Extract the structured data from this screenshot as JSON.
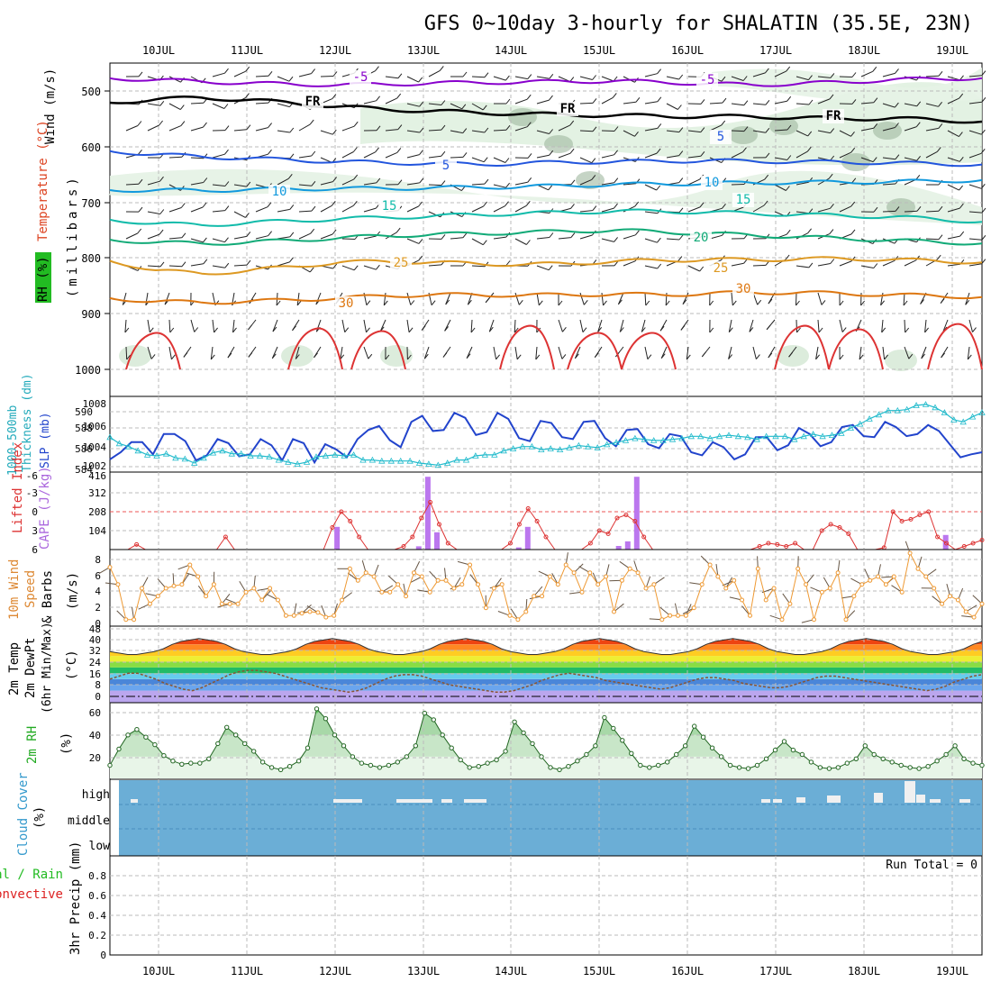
{
  "title": "GFS 0~10day 3-hourly for SHALATIN (35.5E, 23N)",
  "date_labels": [
    "10JUL",
    "11JUL",
    "12JUL",
    "13JUL",
    "14JUL",
    "15JUL",
    "16JUL",
    "17JUL",
    "18JUL",
    "19JUL"
  ],
  "chart_data": [
    {
      "id": "upper-air",
      "type": "contour",
      "ylabel": [
        "Wind (m/s)",
        "Temperature (°C)",
        "RH (%)",
        "(millibars)"
      ],
      "y_ticks": [
        "500",
        "600",
        "700",
        "800",
        "900",
        "1000"
      ],
      "isotherm_labels": [
        "-5",
        "FR",
        "5",
        "10",
        "15",
        "20",
        "25",
        "30"
      ],
      "isotherms": [
        {
          "label": "-5",
          "color": "#8800cc",
          "p": [
            477,
            480,
            483,
            486,
            488,
            489,
            488,
            486,
            485,
            484,
            483,
            482,
            484,
            487,
            489,
            487,
            484,
            480,
            478,
            477
          ]
        },
        {
          "label": "FR",
          "color": "#000000",
          "p": [
            521,
            515,
            512,
            516,
            522,
            528,
            533,
            536,
            539,
            541,
            543,
            544,
            545,
            546,
            546,
            548,
            550,
            549,
            552,
            555
          ]
        },
        {
          "label": "5",
          "color": "#2255dd",
          "p": [
            608,
            614,
            618,
            621,
            624,
            627,
            629,
            630,
            632,
            630,
            628,
            627,
            626,
            625,
            626,
            627,
            628,
            629,
            631,
            632
          ]
        },
        {
          "label": "10",
          "color": "#1199dd",
          "p": [
            678,
            678,
            679,
            677,
            676,
            675,
            675,
            674,
            673,
            672,
            670,
            668,
            667,
            666,
            665,
            664,
            664,
            663,
            662,
            660
          ]
        },
        {
          "label": "15",
          "color": "#11bbaa",
          "p": [
            731,
            738,
            741,
            737,
            733,
            730,
            727,
            725,
            722,
            720,
            718,
            716,
            716,
            718,
            720,
            722,
            724,
            726,
            730,
            735
          ]
        },
        {
          "label": "20",
          "color": "#11aa77",
          "p": [
            767,
            772,
            774,
            772,
            768,
            764,
            760,
            758,
            756,
            754,
            752,
            750,
            753,
            756,
            759,
            762,
            765,
            768,
            771,
            774
          ]
        },
        {
          "label": "25",
          "color": "#dd9922",
          "p": [
            805,
            822,
            828,
            823,
            815,
            808,
            806,
            808,
            810,
            812,
            810,
            806,
            804,
            803,
            803,
            802,
            801,
            803,
            805,
            808
          ]
        },
        {
          "label": "30",
          "color": "#dd7711",
          "p": [
            872,
            878,
            880,
            878,
            875,
            872,
            868,
            866,
            866,
            867,
            866,
            865,
            866,
            864,
            862,
            862,
            864,
            866,
            868,
            870
          ]
        }
      ]
    },
    {
      "id": "thickness-slp",
      "type": "line",
      "ylabel_left": [
        "1000-500mb",
        "Thickness (dm)"
      ],
      "ylabel_right": "SLP (mb)",
      "thickness_ticks": [
        "590",
        "588",
        "586",
        "584"
      ],
      "slp_ticks": [
        "1008",
        "1006",
        "1004",
        "1002"
      ],
      "series": [
        {
          "name": "SLP (mb)",
          "color": "#2244cc",
          "values": [
            1002.9,
            1003.6,
            1004.6,
            1004.6,
            1003.4,
            1005.4,
            1005.4,
            1004.7,
            1002.8,
            1003.3,
            1004.9,
            1004.5,
            1003.2,
            1003.4,
            1004.9,
            1004.3,
            1002.8,
            1004.9,
            1004.5,
            1002.6,
            1004.4,
            1003.9,
            1003.1,
            1004.9,
            1005.8,
            1006.2,
            1004.8,
            1004.1,
            1006.6,
            1007.2,
            1005.7,
            1005.8,
            1007.5,
            1007.0,
            1005.3,
            1005.6,
            1007.5,
            1006.9,
            1005.0,
            1004.7,
            1006.7,
            1006.5,
            1005.1,
            1004.9,
            1006.6,
            1006.7,
            1005.0,
            1004.2,
            1005.8,
            1005.9,
            1004.4,
            1004.0,
            1005.4,
            1005.2,
            1003.6,
            1003.3,
            1004.6,
            1004.1,
            1002.9,
            1003.4,
            1005.1,
            1005.1,
            1003.8,
            1004.3,
            1006.0,
            1005.4,
            1004.2,
            1004.6,
            1006.1,
            1006.3,
            1005.2,
            1005.1,
            1006.6,
            1006.1,
            1005.2,
            1005.4,
            1006.3,
            1005.7,
            1004.4,
            1003.1,
            1003.4,
            1003.6
          ]
        },
        {
          "name": "1000-500mb Thickness (dm)",
          "color": "#22bbcc",
          "values": [
            587.2,
            586.6,
            586.3,
            585.9,
            585.5,
            585.4,
            585.6,
            585.2,
            585.1,
            584.7,
            585.2,
            585.7,
            585.9,
            585.6,
            585.6,
            585.4,
            585.4,
            585.3,
            585.0,
            584.8,
            584.6,
            584.8,
            585.3,
            585.4,
            585.5,
            585.4,
            585.5,
            585.0,
            585.0,
            584.9,
            584.9,
            584.9,
            584.9,
            584.7,
            584.6,
            584.5,
            584.7,
            585.0,
            585.0,
            585.4,
            585.5,
            585.5,
            585.9,
            586.1,
            586.3,
            586.3,
            586.0,
            586.1,
            586.0,
            586.2,
            586.4,
            586.3,
            586.2,
            586.5,
            586.7,
            586.9,
            587.1,
            587.0,
            586.9,
            586.9,
            587.0,
            587.1,
            587.3,
            587.3,
            587.1,
            587.3,
            587.4,
            587.3,
            587.2,
            587.0,
            587.3,
            587.3,
            587.3,
            587.0,
            587.3,
            587.5,
            587.3,
            587.4,
            587.6,
            588.1,
            588.5,
            589.0,
            589.4,
            589.8,
            589.8,
            589.9,
            590.3,
            590.4,
            590.1,
            589.6,
            588.9,
            588.7,
            589.2,
            589.6
          ]
        }
      ]
    },
    {
      "id": "lifted-cape",
      "type": "bar+line",
      "ylabel_left": "Lifted Index",
      "ylabel_right": "CAPE (J/kg)",
      "li_ticks": [
        "-6",
        "-3",
        "0",
        "3",
        "6"
      ],
      "cape_ticks": [
        "416",
        "312",
        "208",
        "104"
      ],
      "cape": [
        0,
        0,
        0,
        0,
        0,
        0,
        0,
        0,
        0,
        0,
        0,
        0,
        0,
        0,
        0,
        0,
        0,
        0,
        0,
        0,
        0,
        0,
        0,
        0,
        0,
        125,
        0,
        0,
        0,
        0,
        0,
        0,
        0,
        0,
        18,
        400,
        95,
        0,
        0,
        0,
        0,
        0,
        0,
        0,
        0,
        12,
        125,
        0,
        0,
        0,
        0,
        0,
        0,
        0,
        0,
        0,
        20,
        45,
        400,
        0,
        0,
        0,
        0,
        0,
        0,
        0,
        0,
        0,
        0,
        0,
        0,
        0,
        0,
        0,
        0,
        0,
        0,
        0,
        0,
        0,
        0,
        0,
        0,
        0,
        0,
        0,
        0,
        0,
        0,
        0,
        0,
        0,
        80,
        0,
        0,
        0,
        0
      ],
      "lifted_index": [
        6,
        6,
        6,
        5.2,
        6,
        6,
        6,
        6,
        6,
        6,
        6,
        6,
        6,
        4,
        6,
        6,
        6,
        6,
        6,
        6,
        6,
        6,
        6,
        6,
        6,
        2.5,
        0,
        1.5,
        4,
        6,
        6,
        6,
        6,
        5.5,
        4,
        1,
        -1.5,
        2,
        5,
        6,
        6,
        6,
        6,
        6,
        6,
        5,
        2,
        -0.5,
        1.5,
        4,
        6,
        6,
        6,
        6,
        5,
        3,
        3.5,
        1,
        0.5,
        1.5,
        4,
        6,
        6,
        6,
        6,
        6,
        6,
        6,
        6,
        6,
        6,
        6,
        6,
        5.5,
        5,
        5.2,
        5.5,
        5,
        6,
        6,
        3,
        2,
        2.5,
        3.5,
        6,
        6,
        6,
        5.7,
        0,
        1.5,
        1.2,
        0.5,
        0,
        4,
        5,
        6,
        5.5,
        5,
        4.5
      ]
    },
    {
      "id": "wind-10m",
      "type": "line",
      "ylabel": [
        "10m Wind",
        "Speed",
        "& Barbs",
        "(m/s)"
      ],
      "y_ticks": [
        "8",
        "6",
        "4",
        "2",
        "0"
      ],
      "speed": [
        7.2,
        5.0,
        0.5,
        0.5,
        4.5,
        2.5,
        3.5,
        4.5,
        4.8,
        5.0,
        7.5,
        6.0,
        3.5,
        5.0,
        2.5,
        2.5,
        2.5,
        4.0,
        4.5,
        3.0,
        4.5,
        3.0,
        1.0,
        1.0,
        1.3,
        1.5,
        1.4,
        0.8,
        1.0,
        3.0,
        7.0,
        5.5,
        6.5,
        6.0,
        4.0,
        4.0,
        5.0,
        3.5,
        6.5,
        6.0,
        4.0,
        5.5,
        5.5,
        4.5,
        5.0,
        7.5,
        5.0,
        2.0,
        4.5,
        5.0,
        1.0,
        0.5,
        1.5,
        3.5,
        3.5,
        6.0,
        5.0,
        7.5,
        6.5,
        4.0,
        6.5,
        5.0,
        6.0,
        1.5,
        5.5,
        7.0,
        6.5,
        4.5,
        5.0,
        0.5,
        1.0,
        1.0,
        1.0,
        2.0,
        5.0,
        7.5,
        6.0,
        4.5,
        5.5,
        3.0,
        1.0,
        7.0,
        3.0,
        4.5,
        0.5,
        2.5,
        7.0,
        5.0,
        0.5,
        4.0,
        4.5,
        6.5,
        0.5,
        3.5,
        5.0,
        5.5,
        6.0,
        5.0,
        6.0,
        4.0,
        9.0,
        7.0,
        6.0,
        4.5,
        2.5,
        3.5,
        3.0,
        1.5,
        0.8,
        2.5
      ]
    },
    {
      "id": "temp-2m",
      "type": "area",
      "ylabel": [
        "2m Temp",
        "2m DewPt",
        "(6hr Min/Max)",
        "(°C)"
      ],
      "y_ticks": [
        "48",
        "40",
        "32",
        "24",
        "16",
        "8",
        "0"
      ],
      "temperature": [
        31,
        30,
        29,
        29,
        30,
        31,
        33,
        36,
        38,
        39,
        40,
        39,
        38,
        36,
        33,
        31,
        30,
        29,
        29,
        30,
        31,
        33,
        36,
        38,
        39,
        40,
        39,
        38,
        36,
        33,
        31,
        30,
        29,
        29,
        30,
        31,
        33,
        36,
        38,
        39,
        40,
        39,
        38,
        36,
        33,
        31,
        30,
        29,
        29,
        30,
        31,
        33,
        36,
        38,
        39,
        40,
        39,
        38,
        36,
        33,
        31,
        30,
        29,
        29,
        30,
        31,
        33,
        36,
        38,
        39,
        40,
        39,
        38,
        36,
        33,
        31,
        30,
        29,
        29,
        30,
        31,
        33,
        36,
        38,
        39,
        40,
        39,
        38,
        36,
        33,
        31,
        30,
        29,
        29,
        30,
        31,
        33,
        36,
        38
      ],
      "dewpoint": [
        12,
        14,
        16,
        16,
        14,
        12,
        9,
        7,
        5,
        4,
        6,
        9,
        12,
        15,
        17,
        18,
        18,
        17,
        16,
        14,
        12,
        10,
        8,
        6,
        5,
        4,
        3,
        4,
        6,
        9,
        12,
        14,
        15,
        15,
        14,
        12,
        10,
        8,
        7,
        6,
        5,
        4,
        3,
        3,
        4,
        6,
        8,
        11,
        13,
        15,
        16,
        15,
        14,
        13,
        11,
        10,
        9,
        8,
        7,
        6,
        5,
        6,
        8,
        10,
        12,
        13,
        13,
        12,
        11,
        9,
        8,
        7,
        6,
        6,
        7,
        9,
        11,
        13,
        14,
        14,
        13,
        12,
        11,
        10,
        9,
        8,
        7,
        6,
        5,
        4,
        5,
        7,
        10,
        12,
        14,
        15
      ]
    },
    {
      "id": "rh-2m",
      "type": "area",
      "ylabel": [
        "2m RH",
        "(%)"
      ],
      "y_ticks": [
        "60",
        "40",
        "20"
      ],
      "rh": [
        12,
        27,
        40,
        45,
        38,
        31,
        21,
        16,
        13,
        14,
        14,
        18,
        32,
        47,
        40,
        32,
        25,
        15,
        10,
        8,
        11,
        16,
        28,
        64,
        55,
        40,
        30,
        20,
        14,
        12,
        10,
        12,
        15,
        20,
        30,
        60,
        54,
        40,
        28,
        17,
        10,
        11,
        14,
        17,
        25,
        52,
        42,
        32,
        20,
        10,
        8,
        11,
        16,
        22,
        30,
        56,
        46,
        35,
        23,
        12,
        10,
        12,
        15,
        22,
        30,
        48,
        38,
        28,
        20,
        12,
        10,
        9,
        12,
        18,
        26,
        34,
        26,
        22,
        15,
        10,
        9,
        10,
        14,
        18,
        30,
        22,
        18,
        15,
        12,
        10,
        9,
        11,
        16,
        22,
        30,
        18,
        14,
        12
      ]
    },
    {
      "id": "cloud-cover",
      "type": "heatmap",
      "ylabel": [
        "Cloud Cover",
        "(%)"
      ],
      "y_ticks": [
        "high",
        "middle",
        "low"
      ],
      "levels": [
        "high",
        "middle",
        "low"
      ],
      "cover_high": [
        0,
        0,
        0,
        0,
        0,
        0,
        0,
        0,
        0,
        0,
        0,
        0,
        0,
        0,
        0,
        0,
        0,
        0,
        0,
        0,
        0,
        0,
        0,
        0,
        0,
        0,
        0,
        0,
        0,
        0,
        0,
        0,
        0,
        0,
        0,
        0,
        0,
        0,
        0,
        0,
        0,
        0,
        0,
        0,
        0,
        0,
        0,
        0,
        0,
        0,
        0,
        0,
        0,
        0,
        0,
        0,
        0,
        0,
        0,
        0,
        0,
        0,
        0,
        0,
        0,
        0,
        0,
        0,
        0,
        0,
        0,
        0,
        0,
        0,
        0,
        0,
        0,
        0,
        0,
        0,
        0,
        0,
        0,
        0,
        0,
        0,
        0,
        0,
        0,
        0,
        0,
        0,
        0,
        0,
        0,
        0
      ]
    },
    {
      "id": "precip-3hr",
      "type": "bar",
      "ylabel_left": [
        "Total / Rain",
        "Convective"
      ],
      "ylabel": "3hr Precip (mm)",
      "y_ticks": [
        "0.8",
        "0.6",
        "0.4",
        "0.2",
        "0"
      ],
      "run_total_text": "Run Total = 0",
      "values": [
        0,
        0,
        0,
        0,
        0,
        0,
        0,
        0,
        0,
        0,
        0,
        0,
        0,
        0,
        0,
        0,
        0,
        0,
        0,
        0,
        0,
        0,
        0,
        0,
        0,
        0,
        0,
        0,
        0,
        0,
        0,
        0,
        0,
        0,
        0,
        0,
        0,
        0,
        0,
        0,
        0,
        0,
        0,
        0,
        0,
        0,
        0,
        0,
        0,
        0,
        0,
        0,
        0,
        0,
        0,
        0,
        0,
        0,
        0,
        0,
        0,
        0,
        0,
        0,
        0,
        0,
        0,
        0,
        0,
        0,
        0,
        0,
        0,
        0,
        0,
        0,
        0,
        0,
        0,
        0,
        0
      ]
    }
  ]
}
